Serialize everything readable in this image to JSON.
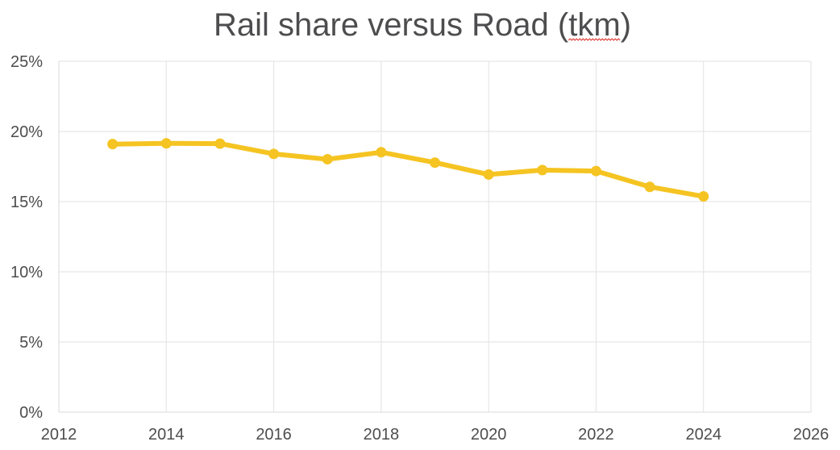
{
  "chart_data": {
    "type": "scatter",
    "title": "Rail share versus Road (tkm)",
    "xlabel": "",
    "ylabel": "",
    "xlim": [
      2012,
      2026
    ],
    "ylim": [
      0,
      0.25
    ],
    "x_ticks": [
      "2012",
      "2014",
      "2016",
      "2018",
      "2020",
      "2022",
      "2024",
      "2026"
    ],
    "y_ticks": [
      "0%",
      "5%",
      "10%",
      "15%",
      "20%",
      "25%"
    ],
    "grid": true,
    "legend": "none",
    "series": [
      {
        "name": "Rail share",
        "color": "#f5c422",
        "x": [
          2013,
          2014,
          2015,
          2016,
          2017,
          2018,
          2019,
          2020,
          2021,
          2022,
          2023,
          2024
        ],
        "y": [
          0.191,
          0.1915,
          0.1913,
          0.184,
          0.1802,
          0.1852,
          0.1778,
          0.1693,
          0.1725,
          0.1718,
          0.1605,
          0.1537
        ]
      }
    ]
  }
}
